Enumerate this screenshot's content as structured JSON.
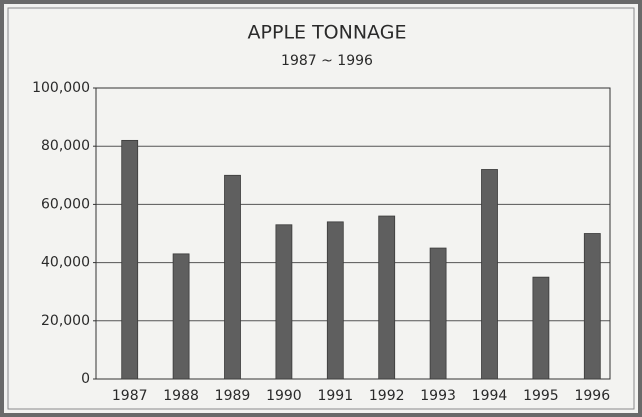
{
  "chart_data": {
    "type": "bar",
    "title": "APPLE TONNAGE",
    "subtitle": "1987 ~ 1996",
    "categories": [
      "1987",
      "1988",
      "1989",
      "1990",
      "1991",
      "1992",
      "1993",
      "1994",
      "1995",
      "1996"
    ],
    "values": [
      82000,
      43000,
      70000,
      53000,
      54000,
      56000,
      45000,
      72000,
      35000,
      50000
    ],
    "color": "#5f5f5f",
    "ylim": [
      0,
      100000
    ],
    "yticks": [
      0,
      {
        "value": 20000,
        "label": "20,000"
      },
      {
        "value": 40000,
        "label": "40,000"
      },
      {
        "value": 60000,
        "label": "60,000"
      },
      {
        "value": 80000,
        "label": "80,000"
      },
      {
        "value": 100000,
        "label": "100,000"
      }
    ],
    "grid": true
  }
}
